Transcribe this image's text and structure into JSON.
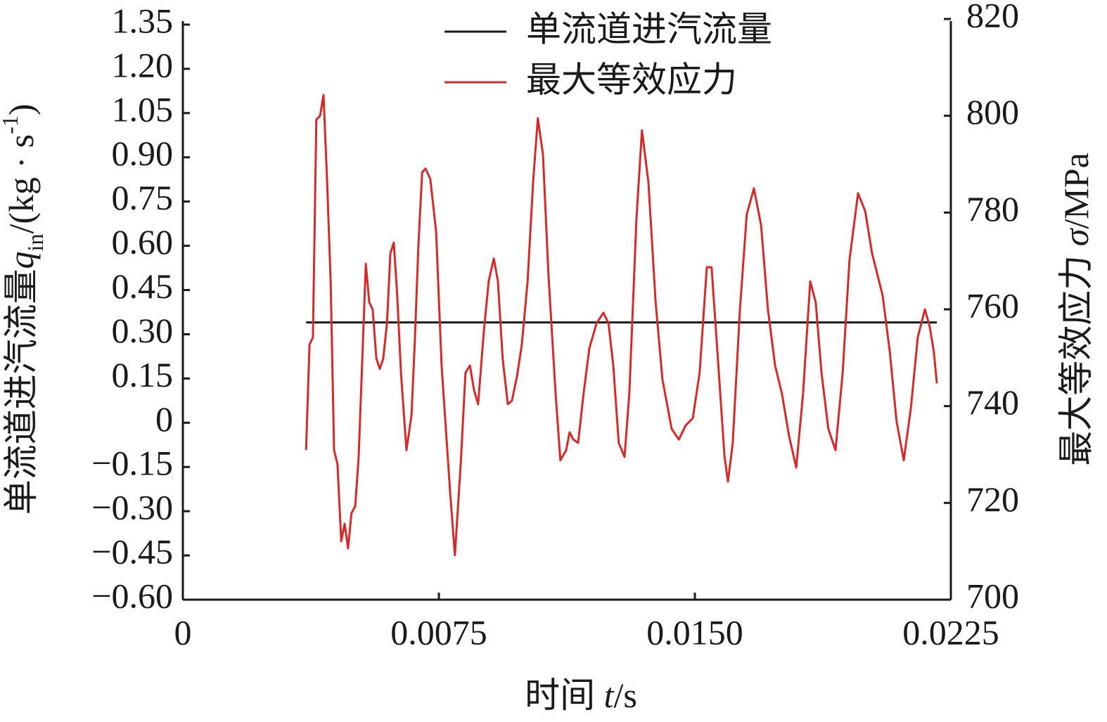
{
  "chart_data": {
    "type": "line",
    "xlabel": [
      "时间 ",
      "t",
      "/s"
    ],
    "ylabel": [
      "单流道进汽流量",
      "q",
      "in",
      "/(kg · s",
      "-1",
      ")"
    ],
    "y2label": [
      "最大等效应力 ",
      "σ",
      "/MPa"
    ],
    "xlim": [
      0,
      0.0225
    ],
    "xticks": [
      0,
      0.0075,
      {
        "value": 0.015,
        "label": "0.0150"
      },
      {
        "value": 0.0225,
        "label": "0.0225"
      }
    ],
    "ylim": [
      -0.6,
      1.35
    ],
    "yticks": [
      {
        "value": -0.6,
        "label": "−0.60"
      },
      {
        "value": -0.45,
        "label": "−0.45"
      },
      {
        "value": -0.3,
        "label": "−0.30"
      },
      {
        "value": -0.15,
        "label": "−0.15"
      },
      0,
      0.15,
      {
        "value": 0.3,
        "label": "0.30"
      },
      0.45,
      {
        "value": 0.6,
        "label": "0.60"
      },
      0.75,
      {
        "value": 0.9,
        "label": "0.90"
      },
      1.05,
      {
        "value": 1.2,
        "label": "1.20"
      },
      1.35
    ],
    "y2lim": [
      700,
      820
    ],
    "y2ticks": [
      700,
      720,
      740,
      760,
      780,
      800,
      820
    ],
    "legend": "top",
    "series": [
      {
        "name": "单流道进汽流量",
        "color": "#1a1a1a",
        "x": [
          0.00361,
          0.02209
        ],
        "values": [
          0.34,
          0.34
        ]
      },
      {
        "name": "最大等效应力",
        "color": "#d42a2a",
        "axis": "y2",
        "x": [
          0.00361,
          0.00371,
          0.00381,
          0.00391,
          0.00402,
          0.00412,
          0.00422,
          0.00433,
          0.00443,
          0.00453,
          0.00464,
          0.00474,
          0.00484,
          0.00494,
          0.00505,
          0.00515,
          0.00525,
          0.00536,
          0.00546,
          0.00556,
          0.00567,
          0.00577,
          0.00587,
          0.00598,
          0.00608,
          0.00618,
          0.00628,
          0.00639,
          0.00655,
          0.0067,
          0.0068,
          0.0069,
          0.00701,
          0.00711,
          0.00725,
          0.00742,
          0.00758,
          0.00783,
          0.00797,
          0.00814,
          0.00828,
          0.00841,
          0.00853,
          0.00865,
          0.00882,
          0.00896,
          0.00911,
          0.00923,
          0.00937,
          0.00952,
          0.00964,
          0.00979,
          0.00993,
          0.0101,
          0.01026,
          0.0104,
          0.01055,
          0.01071,
          0.01092,
          0.01106,
          0.01123,
          0.01133,
          0.01144,
          0.01158,
          0.01174,
          0.01191,
          0.01212,
          0.01232,
          0.01247,
          0.01261,
          0.01277,
          0.01294,
          0.01308,
          0.01329,
          0.01345,
          0.01364,
          0.01385,
          0.01405,
          0.01432,
          0.01453,
          0.01473,
          0.01494,
          0.01514,
          0.01535,
          0.01549,
          0.01566,
          0.01587,
          0.01597,
          0.01611,
          0.01632,
          0.01652,
          0.01673,
          0.01694,
          0.01714,
          0.01735,
          0.01755,
          0.01776,
          0.01797,
          0.01817,
          0.01838,
          0.01854,
          0.01871,
          0.01891,
          0.01912,
          0.01933,
          0.01953,
          0.01978,
          0.01999,
          0.02019,
          0.0205,
          0.02071,
          0.02091,
          0.02112,
          0.02133,
          0.02153,
          0.02174,
          0.02188,
          0.022,
          0.02209
        ],
        "values": [
          730.9,
          752.7,
          754.2,
          799.2,
          800.0,
          804.3,
          787.6,
          765.8,
          730.9,
          728.0,
          712.1,
          715.7,
          710.6,
          717.9,
          719.3,
          729.5,
          748.4,
          769.4,
          761.5,
          760.0,
          749.8,
          747.7,
          749.8,
          757.1,
          771.6,
          773.8,
          762.9,
          746.9,
          730.9,
          738.2,
          754.2,
          773.1,
          788.3,
          789.1,
          786.9,
          776.0,
          748.4,
          722.2,
          709.2,
          728.0,
          746.9,
          748.4,
          743.3,
          740.4,
          755.6,
          765.8,
          770.5,
          765.8,
          749.8,
          740.4,
          741.1,
          746.2,
          752.7,
          765.8,
          786.2,
          799.5,
          792.0,
          767.3,
          742.6,
          728.8,
          730.9,
          734.6,
          733.1,
          732.4,
          742.6,
          752.0,
          757.1,
          759.3,
          757.1,
          748.4,
          732.4,
          729.5,
          742.6,
          778.9,
          797.0,
          786.2,
          761.5,
          745.5,
          735.3,
          733.1,
          736.0,
          737.5,
          746.9,
          768.7,
          768.7,
          751.3,
          729.5,
          724.4,
          732.4,
          760.0,
          779.6,
          785.0,
          777.4,
          760.0,
          748.4,
          742.6,
          733.8,
          727.3,
          742.6,
          765.8,
          761.5,
          746.9,
          735.3,
          730.9,
          746.9,
          770.2,
          784.0,
          780.3,
          771.6,
          762.9,
          751.3,
          736.8,
          728.8,
          739.7,
          754.2,
          760.0,
          756.4,
          751.3,
          744.7
        ]
      }
    ]
  }
}
